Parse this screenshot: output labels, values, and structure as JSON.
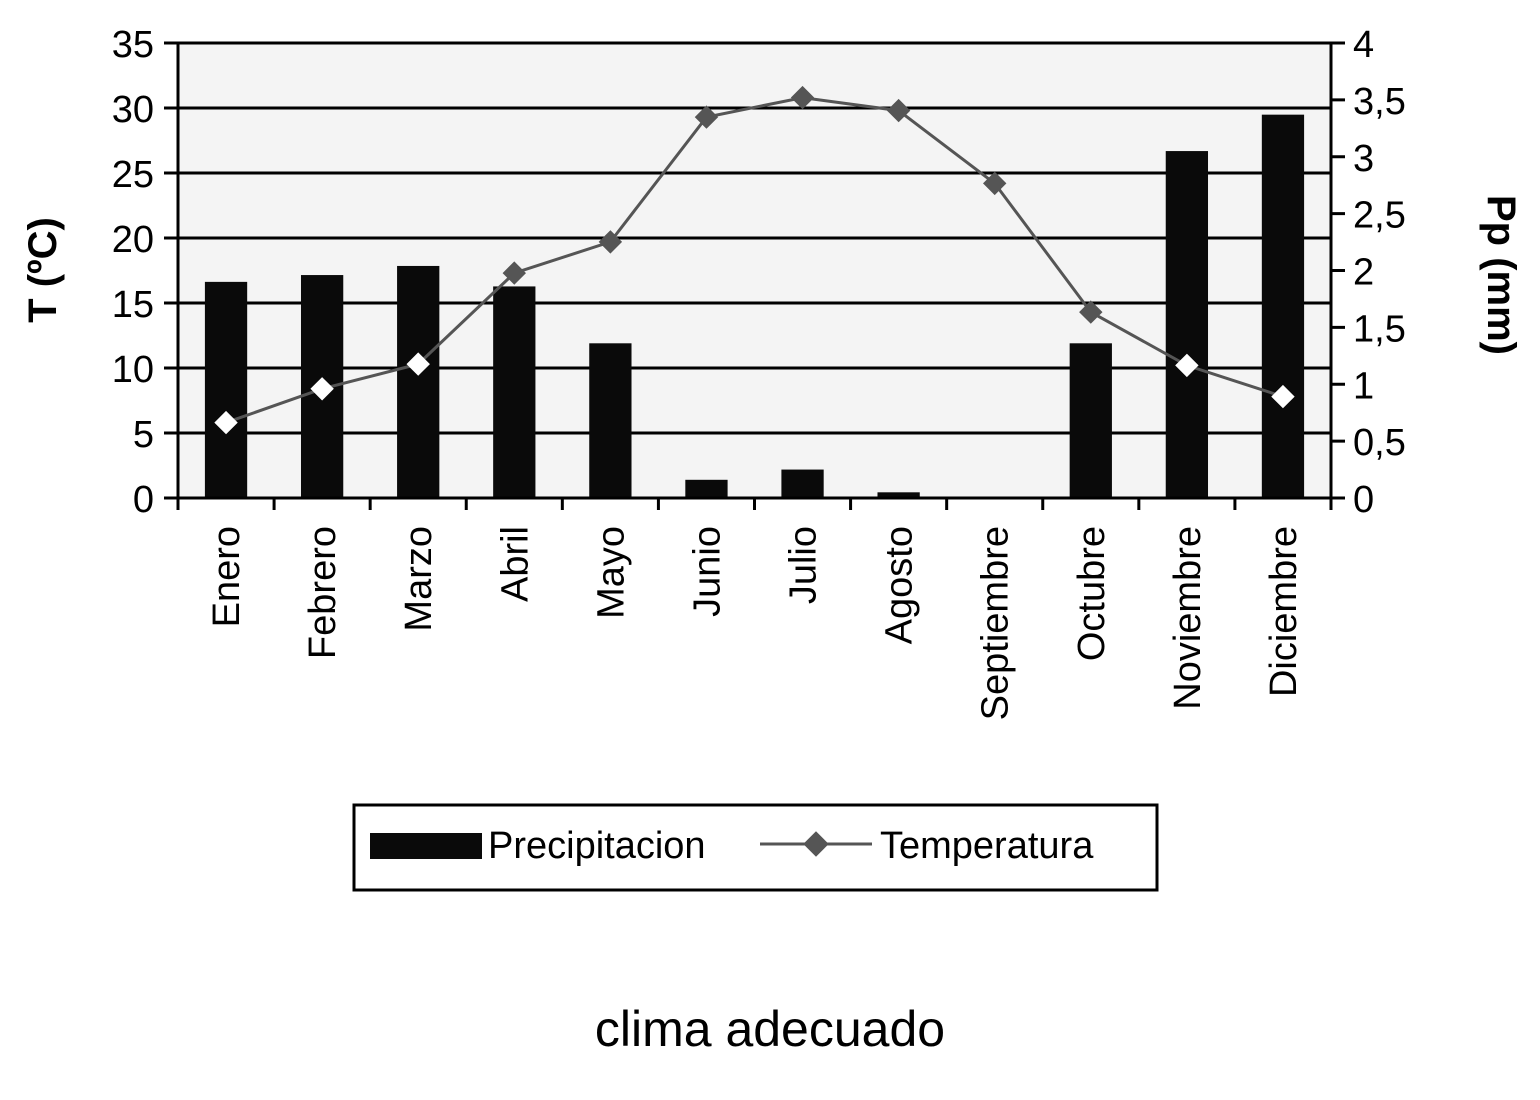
{
  "chart_data": {
    "type": "bar",
    "categories": [
      "Enero",
      "Febrero",
      "Marzo",
      "Abril",
      "Mayo",
      "Junio",
      "Julio",
      "Agosto",
      "Septiembre",
      "Octubre",
      "Noviembre",
      "Diciembre"
    ],
    "series": [
      {
        "name": "Precipitacion",
        "kind": "bar",
        "axis": "right",
        "values": [
          1.9,
          1.96,
          2.04,
          1.86,
          1.36,
          0.16,
          0.25,
          0.05,
          0.0,
          1.36,
          3.05,
          3.37
        ]
      },
      {
        "name": "Temperatura",
        "kind": "line",
        "axis": "left",
        "values": [
          5.8,
          8.4,
          10.3,
          17.3,
          19.7,
          29.3,
          30.8,
          29.8,
          24.2,
          14.3,
          10.2,
          7.8
        ]
      }
    ],
    "ylabel": "T (ºC)",
    "ylim": [
      0,
      35
    ],
    "yticks": [
      "0",
      "5",
      "10",
      "15",
      "20",
      "25",
      "30",
      "35"
    ],
    "y2label": "Pp (mm)",
    "y2lim": [
      0,
      4
    ],
    "y2ticks": [
      "0",
      "0,5",
      "1",
      "1,5",
      "2",
      "2,5",
      "3",
      "3,5",
      "4"
    ],
    "grid": true,
    "legend": "bottom",
    "bar_color": "#0a0a0a",
    "line_color": "#555555"
  },
  "caption": "clima adecuado"
}
